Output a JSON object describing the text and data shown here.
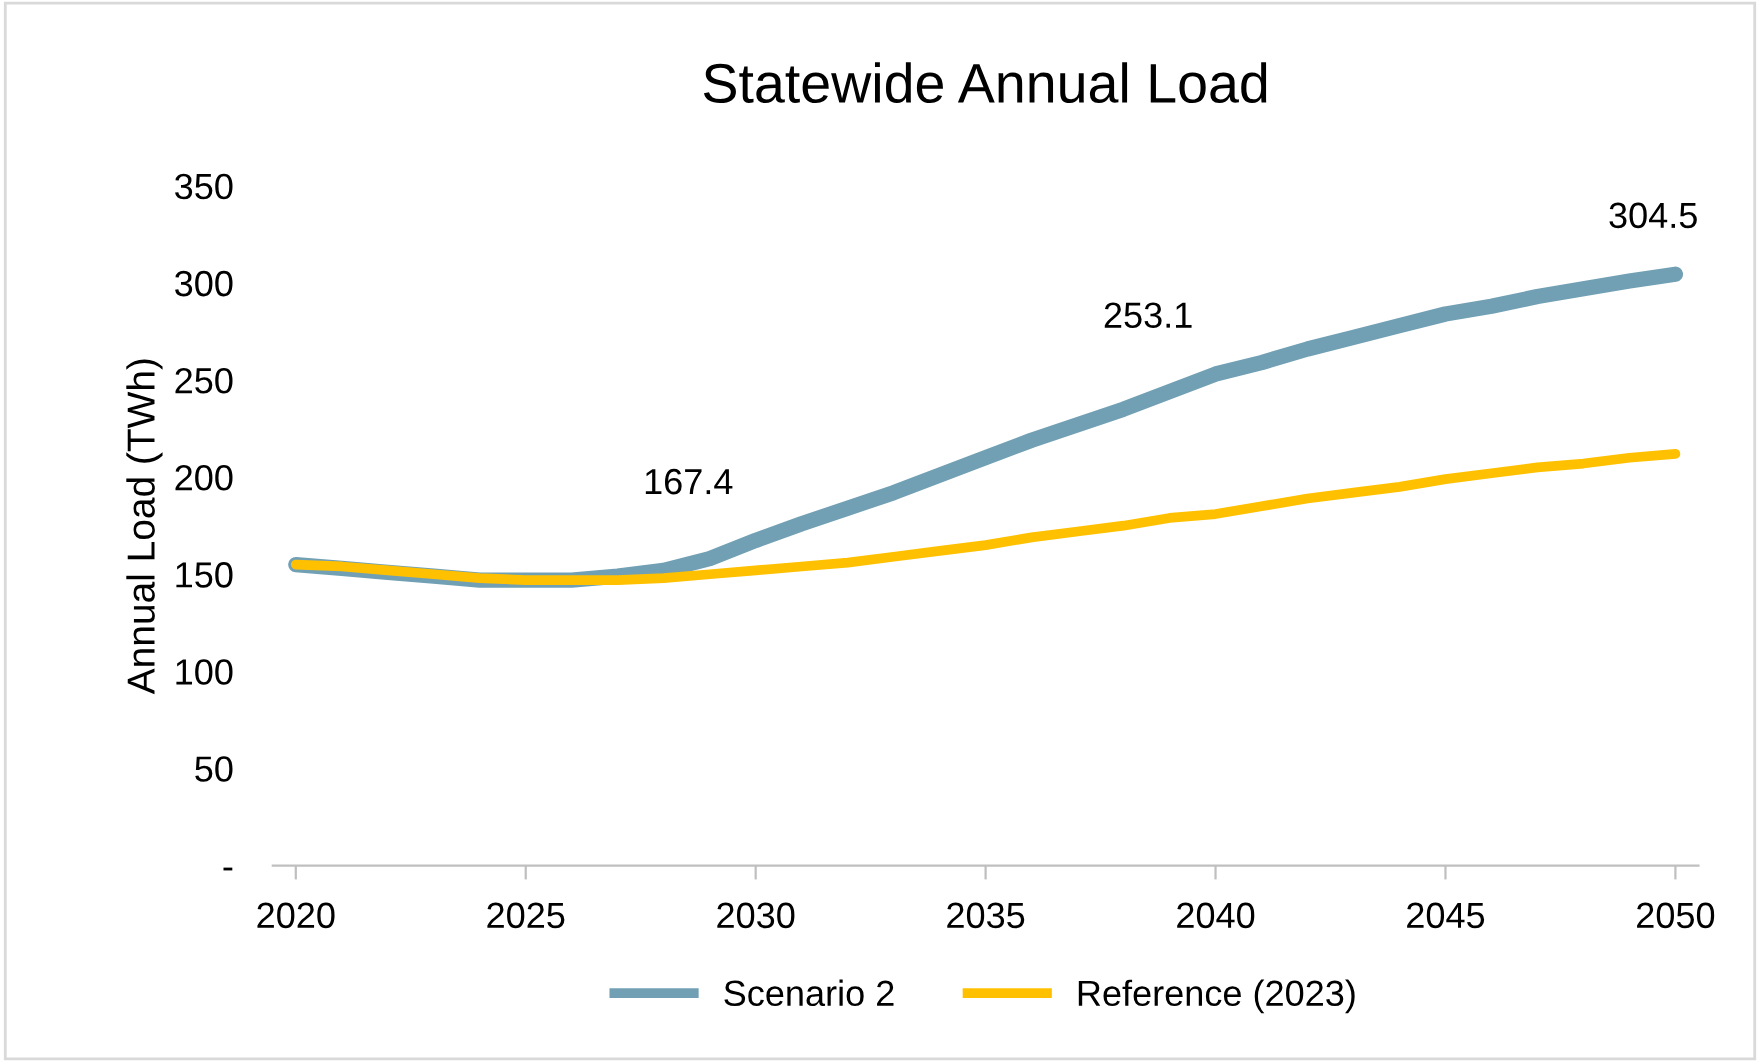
{
  "chart_data": {
    "type": "line",
    "title": "Statewide Annual Load",
    "ylabel": "Annual Load (TWh)",
    "x": [
      2020,
      2021,
      2022,
      2023,
      2024,
      2025,
      2026,
      2027,
      2028,
      2029,
      2030,
      2031,
      2032,
      2033,
      2034,
      2035,
      2036,
      2037,
      2038,
      2039,
      2040,
      2041,
      2042,
      2043,
      2044,
      2045,
      2046,
      2047,
      2048,
      2049,
      2050
    ],
    "series": [
      {
        "name": "Scenario 2",
        "color": "#71a0b4",
        "values": [
          155,
          153,
          151,
          149,
          147,
          147,
          147,
          149,
          152,
          158,
          167.4,
          176,
          184,
          192,
          201,
          210,
          219,
          227,
          235,
          244,
          253.1,
          259,
          266,
          272,
          278,
          284,
          288,
          293,
          297,
          301,
          304.5
        ],
        "value_labels": [
          null,
          null,
          null,
          null,
          null,
          null,
          null,
          null,
          null,
          null,
          "167.4",
          null,
          null,
          null,
          null,
          null,
          null,
          null,
          null,
          null,
          "253.1",
          null,
          null,
          null,
          null,
          null,
          null,
          null,
          null,
          null,
          "304.5"
        ]
      },
      {
        "name": "Reference (2023)",
        "color": "#ffc000",
        "values": [
          155,
          154,
          152,
          150,
          148,
          147,
          147,
          147,
          148,
          150,
          152,
          154,
          156,
          159,
          162,
          165,
          169,
          172,
          175,
          179,
          181,
          185,
          189,
          192,
          195,
          199,
          202,
          205,
          207,
          210,
          212
        ]
      }
    ],
    "xlim": [
      2019.5,
      2050.5
    ],
    "xticks": [
      2020,
      2025,
      2030,
      2035,
      2040,
      2045,
      2050
    ],
    "ylim": [
      0,
      350
    ],
    "yticks": [
      {
        "value": 0,
        "label": "-"
      },
      50,
      100,
      150,
      200,
      250,
      300,
      350
    ],
    "grid": false,
    "legend": "bottom",
    "marker": "none",
    "line_style": "solid"
  }
}
